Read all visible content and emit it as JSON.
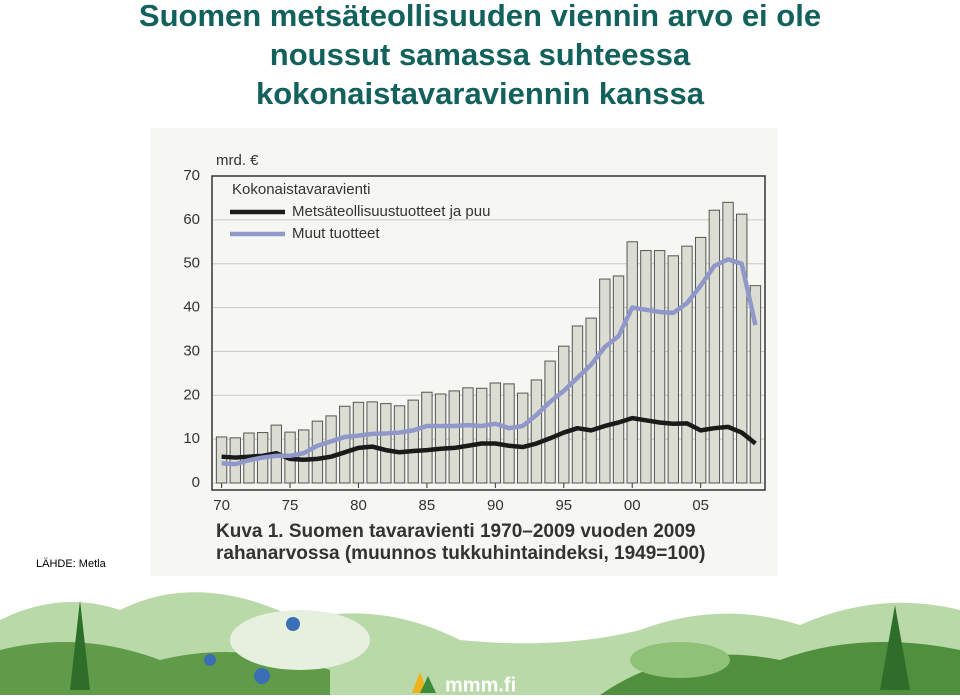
{
  "title": [
    "Suomen metsäteollisuuden viennin arvo ei ole",
    "noussut samassa suhteessa",
    "kokonaistavaraviennin kanssa"
  ],
  "source": "LÄHDE: Metla",
  "logo": "mmm.fi",
  "chart_data": {
    "type": "bar",
    "ylabel": "mrd. €",
    "caption": [
      "Kuva 1. Suomen tavaravienti 1970–2009 vuoden 2009",
      "rahanarvossa (muunnos tukkuhintaindeksi, 1949=100)"
    ],
    "x": [
      1970,
      1971,
      1972,
      1973,
      1974,
      1975,
      1976,
      1977,
      1978,
      1979,
      1980,
      1981,
      1982,
      1983,
      1984,
      1985,
      1986,
      1987,
      1988,
      1989,
      1990,
      1991,
      1992,
      1993,
      1994,
      1995,
      1996,
      1997,
      1998,
      1999,
      2000,
      2001,
      2002,
      2003,
      2004,
      2005,
      2006,
      2007,
      2008,
      2009
    ],
    "xlim": [
      1969.3,
      2009.7
    ],
    "xticks": [
      {
        "value": 1970,
        "label": "70"
      },
      {
        "value": 1975,
        "label": "75"
      },
      {
        "value": 1980,
        "label": "80"
      },
      {
        "value": 1985,
        "label": "85"
      },
      {
        "value": 1990,
        "label": "90"
      },
      {
        "value": 1995,
        "label": "95"
      },
      {
        "value": 2000,
        "label": "00"
      },
      {
        "value": 2005,
        "label": "05"
      }
    ],
    "ylim": [
      0,
      70
    ],
    "yticks": [
      0,
      10,
      20,
      30,
      40,
      50,
      60,
      70
    ],
    "series": [
      {
        "name": "Kokonaistavaravienti",
        "type": "bar",
        "color": "#dcddd2",
        "values": [
          10.5,
          10.3,
          11.4,
          11.5,
          13.2,
          11.6,
          12.1,
          14.1,
          15.3,
          17.5,
          18.4,
          18.5,
          18.1,
          17.6,
          18.9,
          20.7,
          20.3,
          21.0,
          21.7,
          21.6,
          22.8,
          22.6,
          20.5,
          23.5,
          27.8,
          31.2,
          35.8,
          37.6,
          46.5,
          47.2,
          55.0,
          53.0,
          53.0,
          51.8,
          54.0,
          56.0,
          62.2,
          64.0,
          61.3,
          45.0
        ]
      },
      {
        "name": "Metsäteollisuustuotteet ja puu",
        "type": "line",
        "color": "#1a1a1a",
        "values": [
          6,
          5.8,
          6,
          6.2,
          6.8,
          5.5,
          5.3,
          5.5,
          6,
          7,
          8,
          8.3,
          7.5,
          7,
          7.3,
          7.5,
          7.8,
          8,
          8.5,
          9,
          9,
          8.5,
          8.2,
          9,
          10.2,
          11.5,
          12.5,
          12,
          13,
          13.8,
          14.8,
          14.3,
          13.8,
          13.5,
          13.6,
          12,
          12.5,
          12.8,
          11.5,
          9
        ]
      },
      {
        "name": "Muut tuotteet",
        "type": "line",
        "color": "#8f98c9",
        "values": [
          4.5,
          4.3,
          5.2,
          5.8,
          6.2,
          6.2,
          6.8,
          8.5,
          9.5,
          10.5,
          10.8,
          11.2,
          11.3,
          11.5,
          12,
          13,
          13,
          13,
          13.2,
          13,
          13.5,
          12.5,
          13,
          15.5,
          18.5,
          21,
          24,
          27,
          31,
          33.5,
          40,
          39.5,
          39,
          38.8,
          41,
          45,
          49.5,
          51,
          50,
          36
        ]
      }
    ]
  }
}
